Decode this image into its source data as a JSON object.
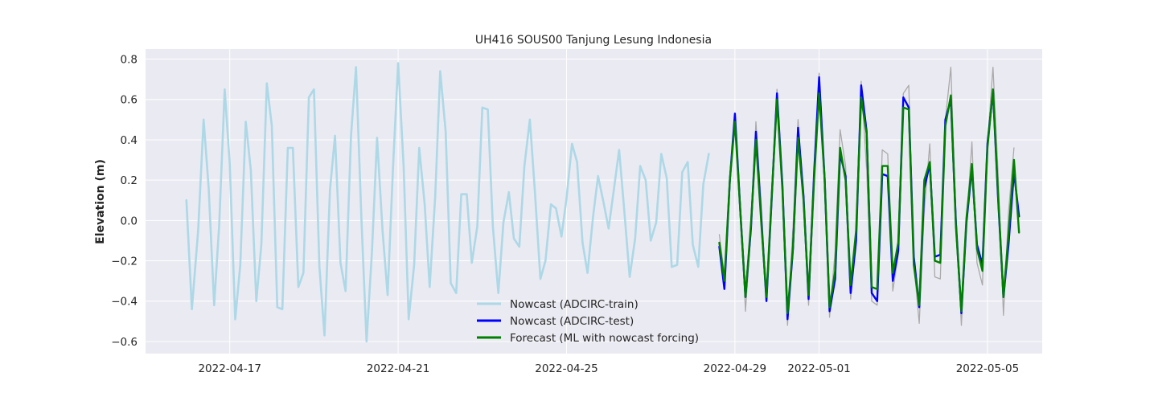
{
  "chart_data": {
    "type": "line",
    "title": "UH416 SOUS00 Tanjung Lesung Indonesia",
    "xlabel": "",
    "ylabel": "Elevation (m)",
    "x_unit": "days since 2022-04-16",
    "xlim": [
      -1.0,
      20.3
    ],
    "ylim": [
      -0.66,
      0.85
    ],
    "grid": true,
    "legend_position": "bottom-center",
    "x_ticks": [
      {
        "value": 1,
        "label": "2022-04-17"
      },
      {
        "value": 5,
        "label": "2022-04-21"
      },
      {
        "value": 9,
        "label": "2022-04-25"
      },
      {
        "value": 13,
        "label": "2022-04-29"
      },
      {
        "value": 15,
        "label": "2022-05-01"
      },
      {
        "value": 19,
        "label": "2022-05-05"
      }
    ],
    "y_ticks": [
      {
        "value": -0.6,
        "label": "−0.6"
      },
      {
        "value": -0.4,
        "label": "−0.4"
      },
      {
        "value": -0.2,
        "label": "−0.2"
      },
      {
        "value": 0.0,
        "label": "0.0"
      },
      {
        "value": 0.2,
        "label": "0.2"
      },
      {
        "value": 0.4,
        "label": "0.4"
      },
      {
        "value": 0.6,
        "label": "0.6"
      },
      {
        "value": 0.8,
        "label": "0.8"
      }
    ],
    "colors": {
      "train": "#add8e6",
      "test": "#0000ff",
      "forecast": "#008000",
      "observed": "#aaaaaa",
      "plot_bg": "#eaeaf2",
      "grid": "#ffffff"
    },
    "series": [
      {
        "name": "Nowcast (ADCIRC-train)",
        "key": "train",
        "in_legend": true,
        "x": [
          -0.03,
          0.1,
          0.25,
          0.38,
          0.5,
          0.63,
          0.75,
          0.88,
          1.0,
          1.13,
          1.25,
          1.38,
          1.5,
          1.63,
          1.75,
          1.88,
          2.0,
          2.13,
          2.25,
          2.38,
          2.5,
          2.63,
          2.75,
          2.88,
          3.0,
          3.13,
          3.25,
          3.38,
          3.5,
          3.63,
          3.75,
          3.88,
          4.0,
          4.13,
          4.25,
          4.38,
          4.5,
          4.63,
          4.75,
          4.88,
          5.0,
          5.13,
          5.25,
          5.38,
          5.5,
          5.63,
          5.75,
          5.88,
          6.0,
          6.13,
          6.25,
          6.38,
          6.5,
          6.63,
          6.75,
          6.88,
          7.0,
          7.13,
          7.25,
          7.38,
          7.5,
          7.63,
          7.75,
          7.88,
          8.0,
          8.13,
          8.25,
          8.38,
          8.5,
          8.63,
          8.75,
          8.88,
          9.0,
          9.13,
          9.25,
          9.38,
          9.5,
          9.63,
          9.75,
          9.88,
          10.0,
          10.13,
          10.25,
          10.38,
          10.5,
          10.63,
          10.75,
          10.88,
          11.0,
          11.13,
          11.25,
          11.38,
          11.5,
          11.63,
          11.75,
          11.88,
          12.0,
          12.13,
          12.25,
          12.38,
          12.5,
          12.63,
          12.75,
          12.88
        ],
        "y": [
          0.1,
          -0.44,
          -0.05,
          0.5,
          0.16,
          -0.42,
          -0.02,
          0.65,
          0.28,
          -0.49,
          -0.22,
          0.49,
          0.25,
          -0.4,
          -0.12,
          0.68,
          0.47,
          -0.43,
          -0.44,
          0.36,
          0.36,
          -0.33,
          -0.26,
          0.61,
          0.65,
          -0.23,
          -0.57,
          0.15,
          0.42,
          -0.21,
          -0.35,
          0.42,
          0.76,
          0.0,
          -0.6,
          -0.15,
          0.41,
          -0.05,
          -0.37,
          0.27,
          0.78,
          0.27,
          -0.49,
          -0.22,
          0.36,
          0.08,
          -0.33,
          0.12,
          0.74,
          0.44,
          -0.31,
          -0.36,
          0.13,
          0.13,
          -0.21,
          -0.03,
          0.56,
          0.55,
          -0.03,
          -0.36,
          -0.01,
          0.14,
          -0.09,
          -0.13,
          0.27,
          0.5,
          0.14,
          -0.29,
          -0.2,
          0.08,
          0.06,
          -0.08,
          0.11,
          0.38,
          0.29,
          -0.11,
          -0.26,
          0.02,
          0.22,
          0.09,
          -0.04,
          0.16,
          0.35,
          0.03,
          -0.28,
          -0.09,
          0.27,
          0.2,
          -0.1,
          -0.01,
          0.33,
          0.21,
          -0.23,
          -0.22,
          0.24,
          0.29,
          -0.12,
          -0.23,
          0.18,
          0.33,
          null,
          null,
          null,
          null
        ]
      },
      {
        "name": "Observed",
        "key": "observed",
        "in_legend": false,
        "x": [
          12.63,
          12.75,
          12.88,
          13.0,
          13.13,
          13.25,
          13.38,
          13.5,
          13.63,
          13.75,
          13.88,
          14.0,
          14.13,
          14.25,
          14.38,
          14.5,
          14.63,
          14.75,
          14.88,
          15.0,
          15.13,
          15.25,
          15.38,
          15.5,
          15.63,
          15.75,
          15.88,
          16.0,
          16.13,
          16.25,
          16.38,
          16.5,
          16.63,
          16.75,
          16.88,
          17.0,
          17.13,
          17.25,
          17.38,
          17.5,
          17.63,
          17.75,
          17.88,
          18.0,
          18.13,
          18.25,
          18.38,
          18.5,
          18.63,
          18.75,
          18.88,
          19.0,
          19.13,
          19.25,
          19.38,
          19.5,
          19.63
        ],
        "y": [
          -0.07,
          -0.27,
          0.22,
          0.52,
          0.08,
          -0.45,
          -0.05,
          0.49,
          0.07,
          -0.4,
          0.14,
          0.65,
          0.19,
          -0.52,
          -0.03,
          0.5,
          0.09,
          -0.42,
          0.23,
          0.73,
          0.2,
          -0.48,
          -0.15,
          0.45,
          0.27,
          -0.39,
          -0.07,
          0.69,
          0.25,
          -0.4,
          -0.42,
          0.35,
          0.33,
          -0.35,
          -0.17,
          0.63,
          0.67,
          -0.21,
          -0.51,
          0.05,
          0.38,
          -0.28,
          -0.29,
          0.5,
          0.76,
          0.03,
          -0.52,
          -0.02,
          0.39,
          -0.21,
          -0.32,
          0.38,
          0.76,
          0.25,
          -0.47,
          0.04,
          0.36
        ]
      },
      {
        "name": "Nowcast (ADCIRC-test)",
        "key": "test",
        "in_legend": true,
        "x": [
          12.63,
          12.75,
          12.88,
          13.0,
          13.13,
          13.25,
          13.38,
          13.5,
          13.63,
          13.75,
          13.88,
          14.0,
          14.13,
          14.25,
          14.38,
          14.5,
          14.63,
          14.75,
          14.88,
          15.0,
          15.13,
          15.25,
          15.38,
          15.5,
          15.63,
          15.75,
          15.88,
          16.0,
          16.13,
          16.25,
          16.38,
          16.5,
          16.63,
          16.75,
          16.88,
          17.0,
          17.13,
          17.25,
          17.38,
          17.5,
          17.63,
          17.75,
          17.88,
          18.0,
          18.13,
          18.25,
          18.38,
          18.5,
          18.63,
          18.75,
          18.88,
          19.0,
          19.13,
          19.25,
          19.38,
          19.5,
          19.63,
          19.75
        ],
        "y": [
          -0.13,
          -0.34,
          0.2,
          0.53,
          0.04,
          -0.38,
          -0.04,
          0.44,
          0.0,
          -0.4,
          0.13,
          0.63,
          0.17,
          -0.49,
          -0.14,
          0.46,
          0.12,
          -0.39,
          0.23,
          0.71,
          0.21,
          -0.45,
          -0.29,
          0.33,
          0.22,
          -0.36,
          -0.1,
          0.67,
          0.44,
          -0.36,
          -0.4,
          0.23,
          0.22,
          -0.3,
          -0.15,
          0.61,
          0.56,
          -0.18,
          -0.43,
          0.16,
          0.28,
          -0.18,
          -0.17,
          0.5,
          0.6,
          -0.01,
          -0.46,
          -0.01,
          0.26,
          -0.12,
          -0.22,
          0.38,
          0.64,
          0.12,
          -0.38,
          -0.12,
          0.24,
          0.02
        ]
      },
      {
        "name": "Forecast (ML with nowcast forcing)",
        "key": "forecast",
        "in_legend": true,
        "x": [
          12.63,
          12.75,
          12.88,
          13.0,
          13.13,
          13.25,
          13.38,
          13.5,
          13.63,
          13.75,
          13.88,
          14.0,
          14.13,
          14.25,
          14.38,
          14.5,
          14.63,
          14.75,
          14.88,
          15.0,
          15.13,
          15.25,
          15.38,
          15.5,
          15.63,
          15.75,
          15.88,
          16.0,
          16.13,
          16.25,
          16.38,
          16.5,
          16.63,
          16.75,
          16.88,
          17.0,
          17.13,
          17.25,
          17.38,
          17.5,
          17.63,
          17.75,
          17.88,
          18.0,
          18.13,
          18.25,
          18.38,
          18.5,
          18.63,
          18.75,
          18.88,
          19.0,
          19.13,
          19.25,
          19.38,
          19.5,
          19.63,
          19.75
        ],
        "y": [
          -0.11,
          -0.3,
          0.2,
          0.49,
          0.04,
          -0.38,
          -0.02,
          0.4,
          -0.02,
          -0.38,
          0.14,
          0.6,
          0.15,
          -0.46,
          -0.13,
          0.41,
          0.1,
          -0.37,
          0.2,
          0.63,
          0.21,
          -0.43,
          -0.25,
          0.36,
          0.2,
          -0.32,
          -0.05,
          0.61,
          0.43,
          -0.33,
          -0.34,
          0.27,
          0.27,
          -0.26,
          -0.11,
          0.56,
          0.55,
          -0.22,
          -0.42,
          0.2,
          0.29,
          -0.2,
          -0.21,
          0.47,
          0.62,
          -0.03,
          -0.45,
          0.01,
          0.28,
          -0.14,
          -0.25,
          0.36,
          0.65,
          0.14,
          -0.38,
          -0.07,
          0.3,
          -0.06
        ]
      }
    ]
  }
}
